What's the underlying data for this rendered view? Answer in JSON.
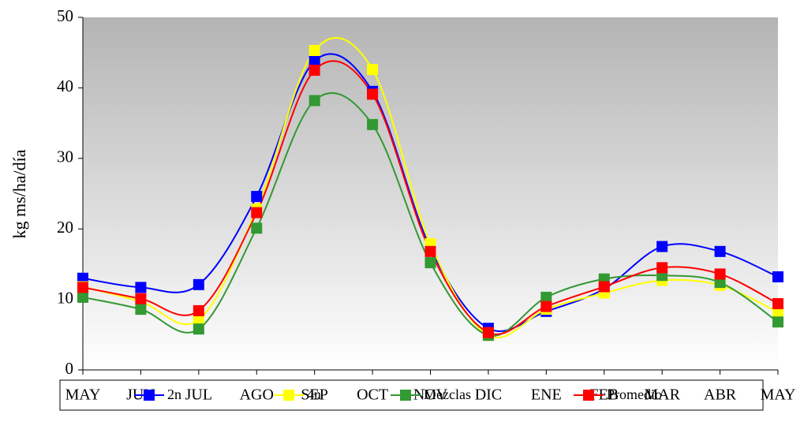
{
  "chart_data": {
    "type": "line",
    "y_label": "kg ms/ha/día",
    "categories": [
      "MAY",
      "JUN",
      "JUL",
      "AGO",
      "SEP",
      "OCT",
      "NOV",
      "DIC",
      "ENE",
      "FEB",
      "MAR",
      "ABR",
      "MAY"
    ],
    "series": [
      {
        "name": "2n",
        "color": "#0000ff",
        "values": [
          13.0,
          11.7,
          12.1,
          24.6,
          43.8,
          39.5,
          17.3,
          5.9,
          8.3,
          11.5,
          17.5,
          16.8,
          13.2
        ]
      },
      {
        "name": "4n",
        "color": "#ffff00",
        "values": [
          11.8,
          9.7,
          7.1,
          22.8,
          45.3,
          42.6,
          17.9,
          4.9,
          8.6,
          10.9,
          12.7,
          12.0,
          8.2
        ]
      },
      {
        "name": "Mezclas",
        "color": "#339933",
        "values": [
          10.3,
          8.6,
          5.8,
          20.1,
          38.2,
          34.8,
          15.2,
          4.9,
          10.3,
          12.9,
          13.4,
          12.4,
          6.8
        ]
      },
      {
        "name": "Promedio",
        "color": "#ff0000",
        "values": [
          11.7,
          10.1,
          8.4,
          22.3,
          42.5,
          39.1,
          16.8,
          5.3,
          9.0,
          11.8,
          14.5,
          13.6,
          9.4
        ]
      }
    ],
    "ylim": [
      0,
      50
    ],
    "yticks": [
      0,
      10,
      20,
      30,
      40,
      50
    ],
    "legend": "bottom",
    "smooth": true
  }
}
